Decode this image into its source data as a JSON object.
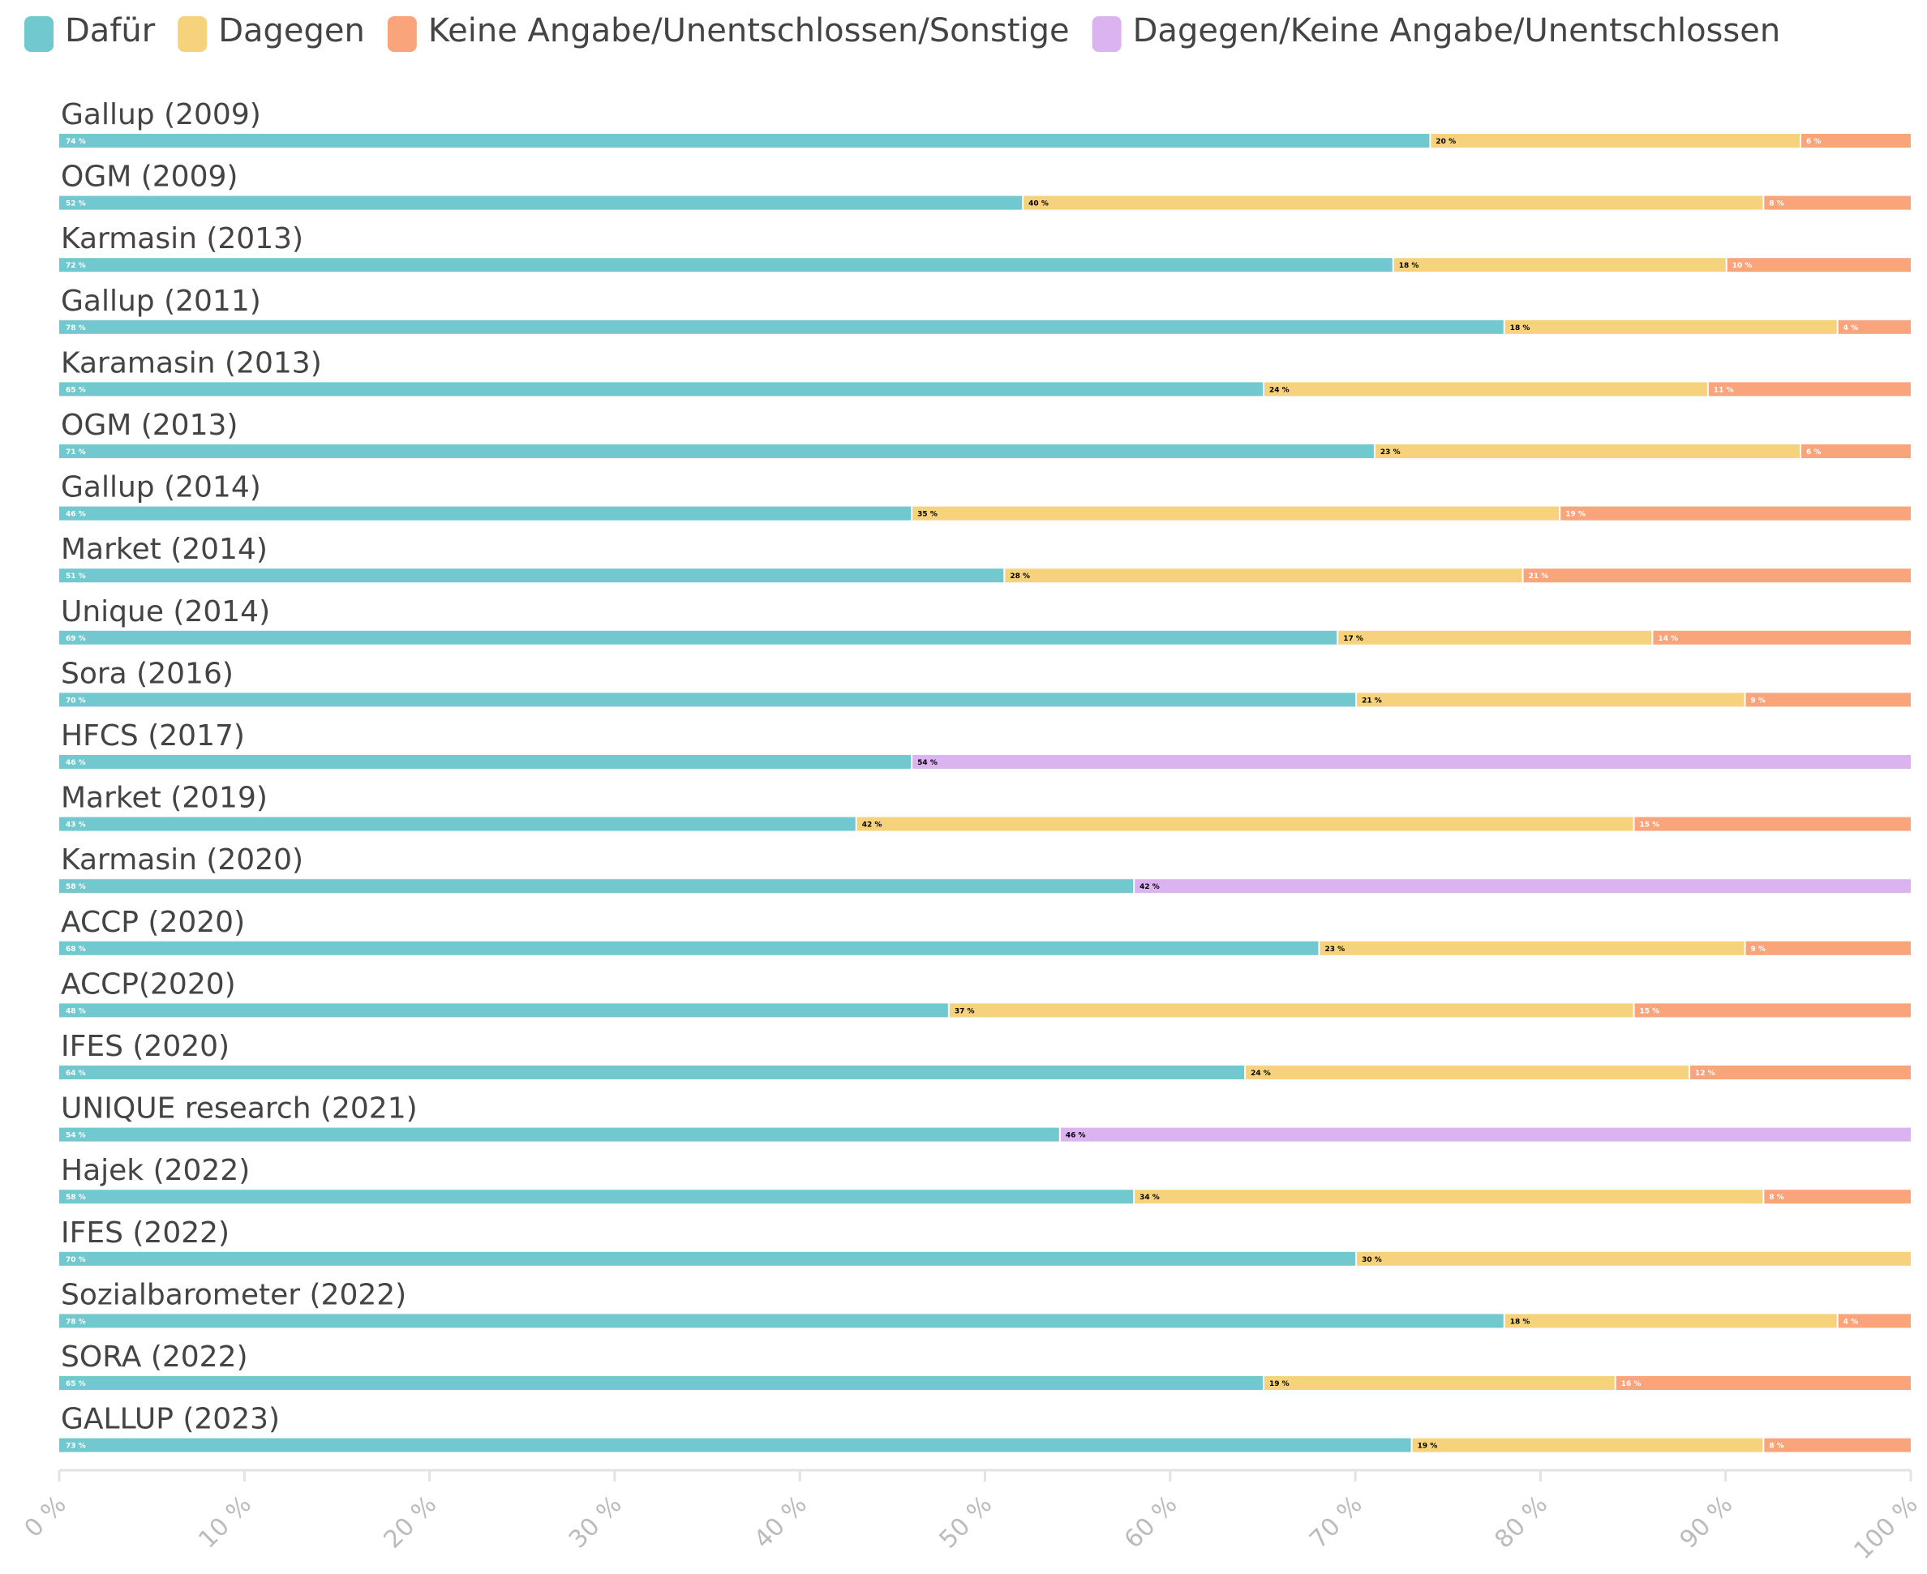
{
  "chart_data": {
    "type": "stacked_bar_horizontal",
    "categories": [
      "Gallup (2009)",
      "OGM (2009)",
      "Karmasin (2013)",
      "Gallup (2011)",
      "Karamasin (2013)",
      "OGM (2013)",
      "Gallup (2014)",
      "Market (2014)",
      "Unique (2014)",
      "Sora (2016)",
      "HFCS (2017)",
      "Market (2019)",
      "Karmasin (2020)",
      "ACCP (2020)",
      "ACCP(2020)",
      "IFES (2020)",
      "UNIQUE research (2021)",
      "Hajek (2022)",
      "IFES (2022)",
      "Sozialbarometer (2022)",
      "SORA (2022)",
      "GALLUP (2023)"
    ],
    "series": [
      {
        "name": "Dafür",
        "color": "#72c8cf",
        "label_color": "#ffffff",
        "values": [
          74,
          52,
          72,
          78,
          65,
          71,
          46,
          51,
          69,
          70,
          46,
          43,
          58,
          68,
          48,
          64,
          54,
          58,
          70,
          78,
          65,
          73
        ],
        "value_labels": [
          "74 %",
          "52 %",
          "72 %",
          "78 %",
          "65 %",
          "71 %",
          "46 %",
          "51 %",
          "69 %",
          "70 %",
          "46 %",
          "43 %",
          "58 %",
          "68 %",
          "48 %",
          "64 %",
          "54 %",
          "58 %",
          "70 %",
          "78 %",
          "65 %",
          "73 %"
        ]
      },
      {
        "name": "Dagegen",
        "color": "#f7d27c",
        "label_color": "#000000",
        "values": [
          20,
          40,
          18,
          18,
          24,
          23,
          35,
          28,
          17,
          21,
          null,
          42,
          null,
          23,
          37,
          24,
          null,
          34,
          30,
          18,
          19,
          19
        ],
        "value_labels": [
          "20 %",
          "40 %",
          "18 %",
          "18 %",
          "24 %",
          "23 %",
          "35 %",
          "28 %",
          "17 %",
          "21 %",
          null,
          "42 %",
          null,
          "23 %",
          "37 %",
          "24 %",
          null,
          "34 %",
          "30 %",
          "18 %",
          "19 %",
          "19 %"
        ]
      },
      {
        "name": "Keine Angabe/Unentschlossen/Sonstige",
        "color": "#f9a47a",
        "label_color": "#ffffff",
        "values": [
          6,
          8,
          10,
          4,
          11,
          6,
          19,
          21,
          14,
          9,
          null,
          15,
          null,
          9,
          15,
          12,
          null,
          8,
          null,
          4,
          16,
          8
        ],
        "value_labels": [
          "6 %",
          "8 %",
          "10 %",
          "4 %",
          "11 %",
          "6 %",
          "19 %",
          "21 %",
          "14 %",
          "9 %",
          null,
          "15 %",
          null,
          "9 %",
          "15 %",
          "12 %",
          null,
          "8 %",
          null,
          "4 %",
          "16 %",
          "8 %"
        ]
      },
      {
        "name": "Dagegen/Keine Angabe/Unentschlossen",
        "color": "#dcb3f1",
        "label_color": "#000000",
        "values": [
          null,
          null,
          null,
          null,
          null,
          null,
          null,
          null,
          null,
          null,
          54,
          null,
          42,
          null,
          null,
          null,
          46,
          null,
          null,
          null,
          null,
          null
        ],
        "value_labels": [
          null,
          null,
          null,
          null,
          null,
          null,
          null,
          null,
          null,
          null,
          "54 %",
          null,
          "42 %",
          null,
          null,
          null,
          "46 %",
          null,
          null,
          null,
          null,
          null
        ]
      }
    ],
    "xlim": [
      0,
      100
    ],
    "xticks": [
      {
        "value": 0,
        "label": "0 %"
      },
      {
        "value": 10,
        "label": "10 %"
      },
      {
        "value": 20,
        "label": "20 %"
      },
      {
        "value": 30,
        "label": "30 %"
      },
      {
        "value": 40,
        "label": "40 %"
      },
      {
        "value": 50,
        "label": "50 %"
      },
      {
        "value": 60,
        "label": "60 %"
      },
      {
        "value": 70,
        "label": "70 %"
      },
      {
        "value": 80,
        "label": "80 %"
      },
      {
        "value": 90,
        "label": "90 %"
      },
      {
        "value": 100,
        "label": "100 %"
      }
    ],
    "legend": "top-left"
  }
}
